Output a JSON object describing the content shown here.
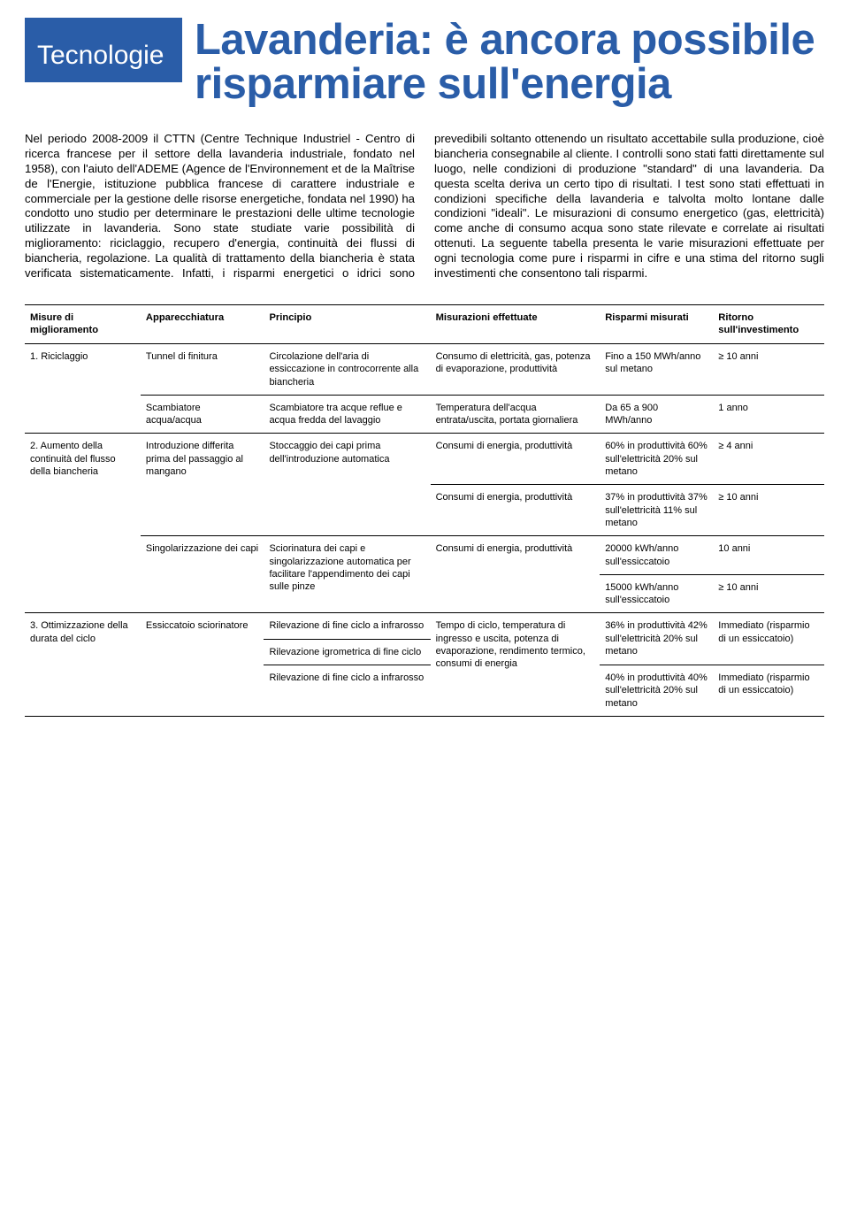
{
  "badge": "Tecnologie",
  "title": "Lavanderia: è ancora possibile risparmiare sull'energia",
  "body": "Nel periodo 2008-2009 il CTTN (Centre Technique Industriel - Centro di ricerca francese per il settore della lavanderia industriale, fondato nel 1958), con l'aiuto dell'ADEME (Agence de l'Environnement et de la Maîtrise de l'Energie, istituzione pubblica francese di carattere industriale e commerciale per la gestione delle risorse energetiche, fondata nel 1990) ha condotto uno studio per determinare le prestazioni delle ultime tecnologie utilizzate in lavanderia. Sono state studiate varie possibilità di miglioramento: riciclaggio, recupero d'energia, continuità dei flussi di biancheria, regolazione. La qualità di trattamento della biancheria è stata verificata sistematicamente. Infatti, i risparmi energetici o idrici sono prevedibili soltanto ottenendo un risultato accettabile sulla produzione, cioè biancheria consegnabile al cliente. I controlli sono stati fatti direttamente sul luogo, nelle condizioni di produzione \"standard\" di una lavanderia. Da questa scelta deriva un certo tipo di risultati. I test sono stati effettuati in condizioni specifiche della lavanderia e talvolta molto lontane dalle condizioni \"ideali\". Le misurazioni di consumo energetico (gas, elettricità) come anche di consumo acqua sono state rilevate e correlate ai risultati ottenuti. La seguente tabella presenta le varie misurazioni effettuate per ogni tecnologia come pure i risparmi in cifre e una stima del ritorno sugli investimenti che consentono tali risparmi.",
  "headers": {
    "c1": "Misure di miglioramento",
    "c2": "Apparecchiatura",
    "c3": "Principio",
    "c4": "Misurazioni effettuate",
    "c5": "Risparmi misurati",
    "c6": "Ritorno sull'investimento"
  },
  "r1": {
    "measure": "1. Riciclaggio",
    "a1": "Tunnel di finitura",
    "p1": "Circolazione dell'aria di essiccazione in controcorrente alla biancheria",
    "m1": "Consumo di elettricità, gas, potenza di evaporazione, produttività",
    "s1": "Fino a 150 MWh/anno sul metano",
    "ret1": "≥ 10 anni",
    "a2": "Scambiatore acqua/acqua",
    "p2": "Scambiatore tra acque reflue e acqua fredda del lavaggio",
    "m2": "Temperatura dell'acqua entrata/uscita, portata giornaliera",
    "s2": "Da 65 a 900 MWh/anno",
    "ret2": "1 anno"
  },
  "r2": {
    "measure": "2. Aumento della continuità del flusso della biancheria",
    "a1": "Introduzione differita prima del passaggio al mangano",
    "p1": "Stoccaggio dei capi prima dell'introduzione automatica",
    "m1a": "Consumi di energia, produttività",
    "s1a": "60% in produttività 60% sull'elettricità 20% sul metano",
    "ret1a": "≥ 4 anni",
    "m1b": "Consumi di energia, produttività",
    "s1b": "37% in produttività 37% sull'elettricità 11% sul metano",
    "ret1b": "≥ 10 anni",
    "a2": "Singolarizzazione dei capi",
    "p2": "Sciorinatura dei capi e singolarizzazione automatica per facilitare l'appendimento dei capi sulle pinze",
    "m2": "Consumi di energia, produttività",
    "s2a": "20000 kWh/anno sull'essiccatoio",
    "ret2a": "10 anni",
    "s2b": "15000 kWh/anno sull'essiccatoio",
    "ret2b": "≥ 10 anni"
  },
  "r3": {
    "measure": "3. Ottimizzazione della durata del ciclo",
    "a": "Essiccatoio sciorinatore",
    "p1": "Rilevazione di fine ciclo a infrarosso",
    "p2": "Rilevazione igrometrica di fine ciclo",
    "p3": "Rilevazione di fine ciclo a infrarosso",
    "m": "Tempo di ciclo, temperatura di ingresso e uscita, potenza di evaporazione, rendimento termico, consumi di energia",
    "s1": "36% in produttività 42% sull'elettricità 20% sul metano",
    "ret1": "Immediato (risparmio di un essiccatoio)",
    "s2": "40% in produttività 40% sull'elettricità 20% sul metano",
    "ret2": "Immediato (risparmio di un essiccatoio)"
  }
}
